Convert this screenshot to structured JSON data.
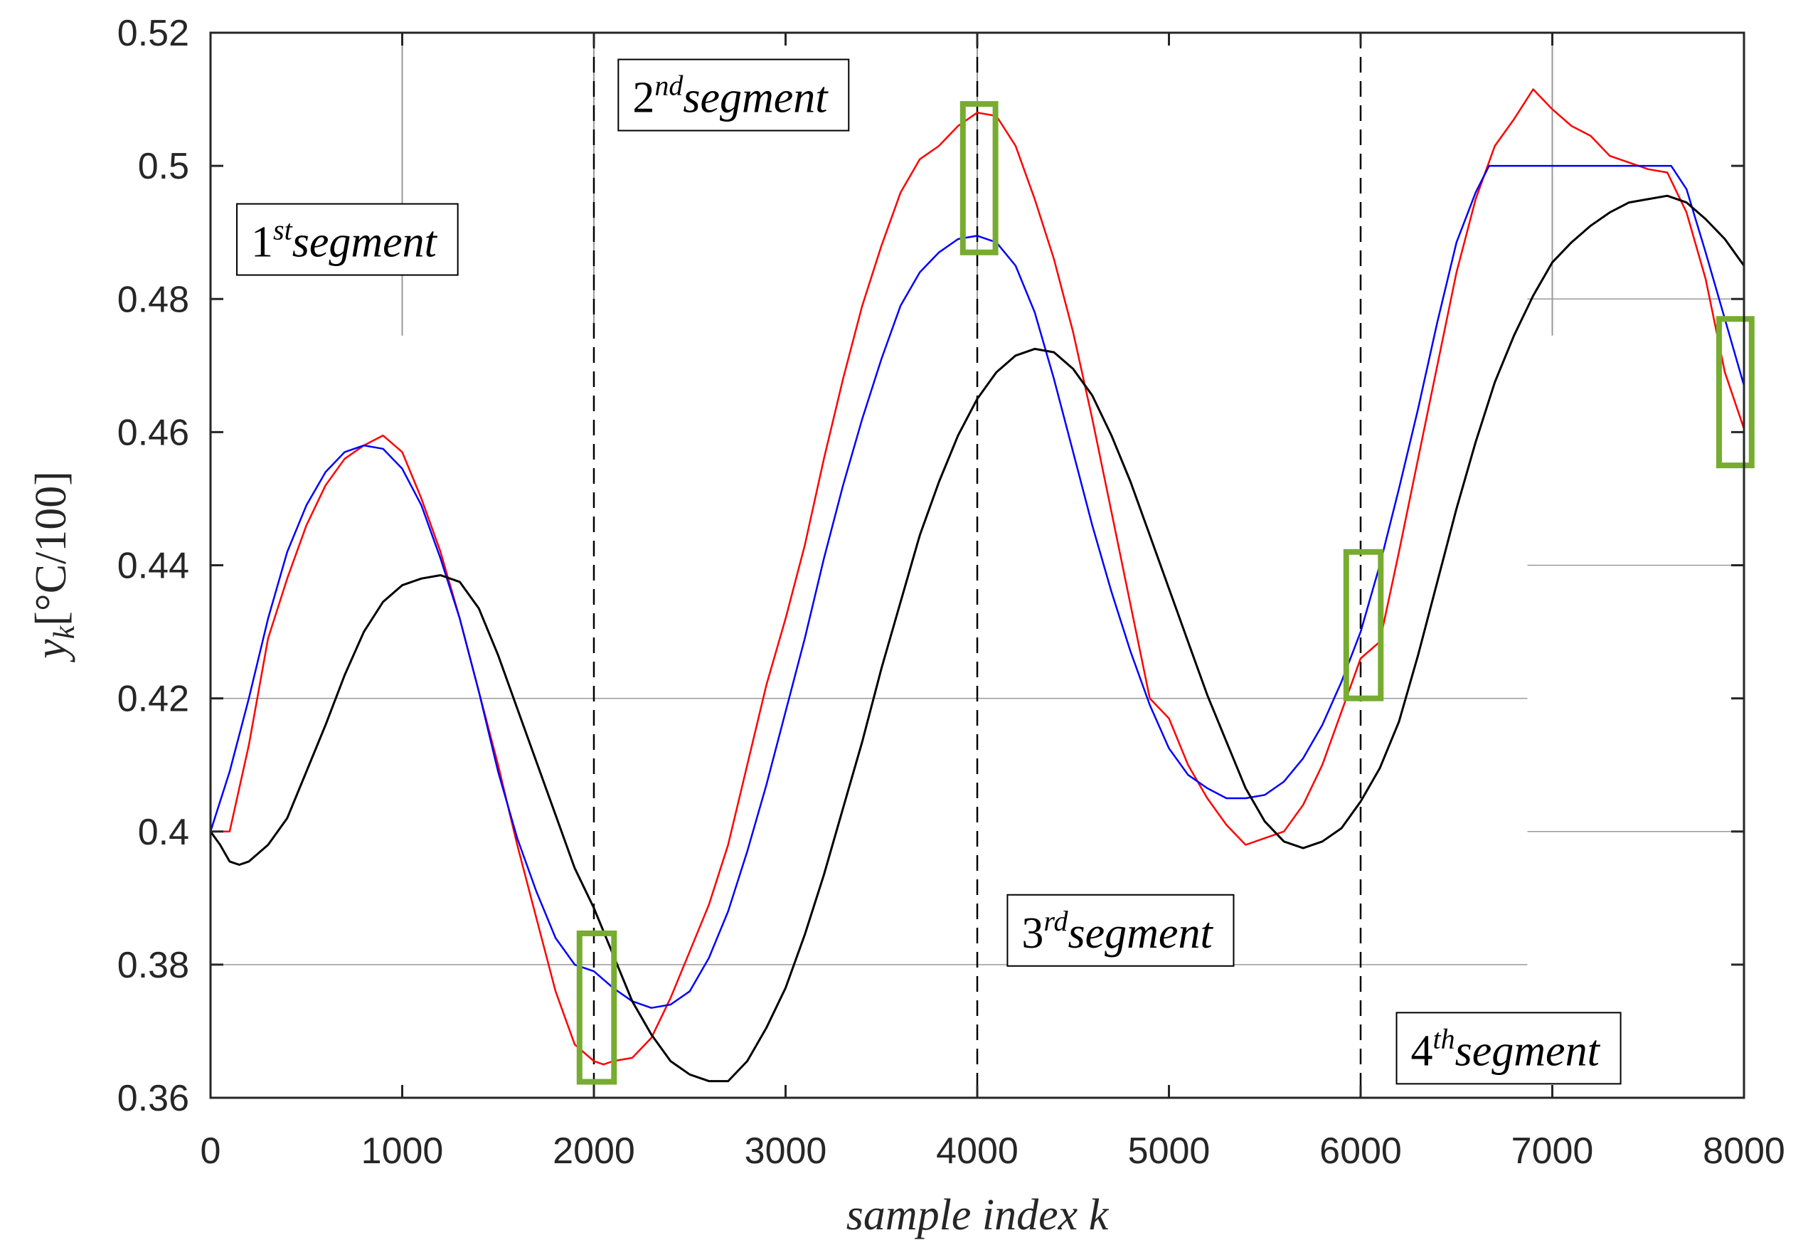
{
  "chart_data": {
    "type": "line",
    "title": "",
    "xlabel": "sample index k",
    "ylabel_parts": {
      "var": "y",
      "sub": "k",
      "units": "[°C/100]"
    },
    "xlim": [
      0,
      8000
    ],
    "ylim": [
      0.36,
      0.52
    ],
    "x_ticks": [
      0,
      1000,
      2000,
      3000,
      4000,
      5000,
      6000,
      7000,
      8000
    ],
    "x_tick_labels": [
      "0",
      "1000",
      "2000",
      "3000",
      "4000",
      "5000",
      "6000",
      "7000",
      "8000"
    ],
    "y_ticks": [
      0.36,
      0.38,
      0.4,
      0.42,
      0.44,
      0.46,
      0.48,
      0.5,
      0.52
    ],
    "y_tick_labels": [
      "0.36",
      "0.38",
      "0.4",
      "0.42",
      "0.44",
      "0.46",
      "0.48",
      "0.5",
      "0.52"
    ],
    "segment_dividers": [
      2000,
      4000,
      6000
    ],
    "segments": [
      {
        "num": "1",
        "sup": "st",
        "word": "segment",
        "anchor_x": 130,
        "anchor_y": 0.4945
      },
      {
        "num": "2",
        "sup": "nd",
        "word": "segment",
        "anchor_x": 2120,
        "anchor_y": 0.5162
      },
      {
        "num": "3",
        "sup": "rd",
        "word": "segment",
        "anchor_x": 4150,
        "anchor_y": 0.3907
      },
      {
        "num": "4",
        "sup": "th",
        "word": "segment",
        "anchor_x": 6180,
        "anchor_y": 0.373
      }
    ],
    "highlight_boxes": [
      {
        "x0": 1925,
        "x1": 2105,
        "y0": 0.3624,
        "y1": 0.3847
      },
      {
        "x0": 3925,
        "x1": 4095,
        "y0": 0.487,
        "y1": 0.5093
      },
      {
        "x0": 5925,
        "x1": 6105,
        "y0": 0.42,
        "y1": 0.442
      },
      {
        "x0": 7870,
        "x1": 8040,
        "y0": 0.455,
        "y1": 0.477
      }
    ],
    "colors": {
      "red": "#ff0000",
      "blue": "#0000ff",
      "black": "#000000",
      "box": "#77ac30"
    },
    "series": [
      {
        "name": "red",
        "x": [
          0,
          100,
          200,
          300,
          400,
          500,
          600,
          700,
          800,
          900,
          1000,
          1100,
          1200,
          1300,
          1400,
          1500,
          1600,
          1700,
          1800,
          1900,
          2000,
          2050,
          2100,
          2200,
          2300,
          2400,
          2500,
          2600,
          2700,
          2800,
          2900,
          3000,
          3100,
          3200,
          3300,
          3400,
          3500,
          3600,
          3700,
          3800,
          3900,
          4000,
          4100,
          4200,
          4300,
          4400,
          4500,
          4600,
          4700,
          4800,
          4900,
          5000,
          5100,
          5200,
          5300,
          5400,
          5500,
          5600,
          5700,
          5800,
          5900,
          6000,
          6100,
          6200,
          6300,
          6400,
          6500,
          6600,
          6700,
          6800,
          6900,
          7000,
          7100,
          7200,
          7300,
          7400,
          7500,
          7600,
          7700,
          7800,
          7900,
          8000
        ],
        "values": [
          0.4,
          0.4,
          0.413,
          0.429,
          0.438,
          0.446,
          0.452,
          0.456,
          0.458,
          0.4595,
          0.457,
          0.45,
          0.442,
          0.432,
          0.421,
          0.41,
          0.398,
          0.387,
          0.376,
          0.368,
          0.3655,
          0.365,
          0.3655,
          0.366,
          0.369,
          0.375,
          0.382,
          0.389,
          0.398,
          0.41,
          0.422,
          0.432,
          0.443,
          0.456,
          0.468,
          0.479,
          0.488,
          0.496,
          0.501,
          0.503,
          0.506,
          0.508,
          0.5075,
          0.503,
          0.495,
          0.486,
          0.475,
          0.462,
          0.448,
          0.434,
          0.42,
          0.417,
          0.41,
          0.405,
          0.401,
          0.398,
          0.399,
          0.4,
          0.404,
          0.41,
          0.418,
          0.426,
          0.4285,
          0.442,
          0.456,
          0.47,
          0.484,
          0.495,
          0.503,
          0.507,
          0.5115,
          0.5085,
          0.506,
          0.5045,
          0.5015,
          0.5005,
          0.4995,
          0.499,
          0.493,
          0.483,
          0.469,
          0.4605
        ]
      },
      {
        "name": "blue",
        "x": [
          0,
          100,
          200,
          300,
          400,
          500,
          600,
          700,
          800,
          900,
          1000,
          1100,
          1200,
          1300,
          1400,
          1500,
          1600,
          1700,
          1800,
          1900,
          2000,
          2100,
          2200,
          2300,
          2400,
          2500,
          2600,
          2700,
          2800,
          2900,
          3000,
          3100,
          3200,
          3300,
          3400,
          3500,
          3600,
          3700,
          3800,
          3900,
          4000,
          4100,
          4200,
          4300,
          4400,
          4500,
          4600,
          4700,
          4800,
          4900,
          5000,
          5100,
          5200,
          5300,
          5400,
          5500,
          5600,
          5700,
          5800,
          5900,
          6000,
          6100,
          6200,
          6300,
          6400,
          6500,
          6600,
          6670,
          6700,
          6800,
          6900,
          7000,
          7100,
          7200,
          7300,
          7400,
          7500,
          7600,
          7620,
          7700,
          7800,
          7900,
          8000
        ],
        "values": [
          0.4,
          0.409,
          0.42,
          0.432,
          0.442,
          0.449,
          0.454,
          0.457,
          0.458,
          0.4575,
          0.4545,
          0.449,
          0.441,
          0.432,
          0.421,
          0.409,
          0.399,
          0.391,
          0.384,
          0.38,
          0.379,
          0.3765,
          0.3745,
          0.3735,
          0.374,
          0.376,
          0.381,
          0.388,
          0.397,
          0.407,
          0.418,
          0.429,
          0.441,
          0.452,
          0.462,
          0.471,
          0.479,
          0.484,
          0.487,
          0.489,
          0.4895,
          0.4885,
          0.485,
          0.478,
          0.468,
          0.457,
          0.446,
          0.436,
          0.427,
          0.419,
          0.4125,
          0.4085,
          0.4065,
          0.405,
          0.405,
          0.4055,
          0.4075,
          0.411,
          0.416,
          0.4225,
          0.43,
          0.44,
          0.4515,
          0.4635,
          0.4765,
          0.4885,
          0.496,
          0.5,
          0.5,
          0.5,
          0.5,
          0.5,
          0.5,
          0.5,
          0.5,
          0.5,
          0.5,
          0.5,
          0.5,
          0.4965,
          0.487,
          0.477,
          0.467
        ]
      },
      {
        "name": "black",
        "x": [
          0,
          50,
          100,
          150,
          200,
          300,
          400,
          500,
          600,
          700,
          800,
          900,
          1000,
          1100,
          1200,
          1300,
          1400,
          1500,
          1600,
          1700,
          1800,
          1900,
          2000,
          2100,
          2200,
          2300,
          2400,
          2500,
          2600,
          2700,
          2800,
          2900,
          3000,
          3100,
          3200,
          3300,
          3400,
          3500,
          3600,
          3700,
          3800,
          3900,
          4000,
          4100,
          4200,
          4300,
          4400,
          4500,
          4600,
          4700,
          4800,
          4900,
          5000,
          5100,
          5200,
          5300,
          5400,
          5500,
          5600,
          5700,
          5800,
          5900,
          6000,
          6100,
          6200,
          6300,
          6400,
          6500,
          6600,
          6700,
          6800,
          6900,
          7000,
          7100,
          7200,
          7300,
          7400,
          7500,
          7600,
          7700,
          7800,
          7900,
          8000
        ],
        "values": [
          0.4,
          0.398,
          0.3955,
          0.395,
          0.3955,
          0.398,
          0.402,
          0.409,
          0.416,
          0.4235,
          0.43,
          0.4345,
          0.437,
          0.438,
          0.4385,
          0.4375,
          0.4335,
          0.4265,
          0.4185,
          0.4105,
          0.4025,
          0.3945,
          0.3885,
          0.3815,
          0.3745,
          0.3695,
          0.3655,
          0.3635,
          0.3625,
          0.3625,
          0.3655,
          0.3705,
          0.3765,
          0.3845,
          0.3935,
          0.4035,
          0.4135,
          0.4245,
          0.4345,
          0.4445,
          0.4525,
          0.4595,
          0.465,
          0.469,
          0.4715,
          0.4725,
          0.472,
          0.4695,
          0.4655,
          0.4595,
          0.4525,
          0.4445,
          0.4365,
          0.4285,
          0.4205,
          0.4135,
          0.4065,
          0.4015,
          0.3985,
          0.3975,
          0.3985,
          0.4005,
          0.4045,
          0.4095,
          0.4165,
          0.4265,
          0.4375,
          0.4485,
          0.4585,
          0.4675,
          0.4745,
          0.4805,
          0.4855,
          0.4885,
          0.491,
          0.493,
          0.4945,
          0.495,
          0.4955,
          0.4945,
          0.492,
          0.489,
          0.485
        ]
      }
    ]
  }
}
